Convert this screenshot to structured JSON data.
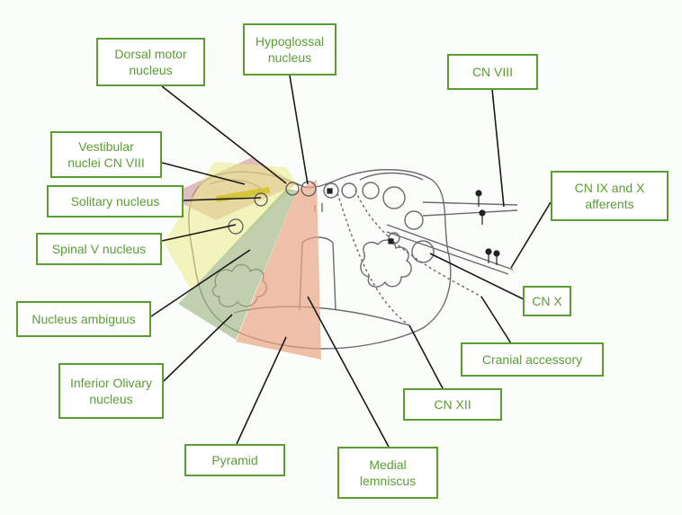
{
  "labels": {
    "dorsal_motor": "Dorsal motor\nnucleus",
    "hypoglossal": "Hypoglossal\nnucleus",
    "cn_viii": "CN VIII",
    "vestibular": "Vestibular\nnuclei CN VIII",
    "solitary": "Solitary nucleus",
    "spinal_v": "Spinal V nucleus",
    "cn_ix_x": "CN IX and  X\nafferents",
    "ambiguus": "Nucleus ambiguus",
    "cn_x": "CN X",
    "cranial_accessory": "Cranial accessory",
    "olivary": "Inferior Olivary\nnucleus",
    "cn_xii": "CN XII",
    "pyramid": "Pyramid",
    "medial_lemniscus": "Medial\nlemniscus"
  },
  "colors": {
    "label_border": "#5a9e32",
    "label_text": "#5a9e32",
    "line": "#1a1a1a",
    "outline": "#6b6b6b",
    "region_red": "#c98a8a",
    "region_yellow": "#ecec8a",
    "region_green": "#9fb886",
    "region_orange": "#e9a585"
  }
}
